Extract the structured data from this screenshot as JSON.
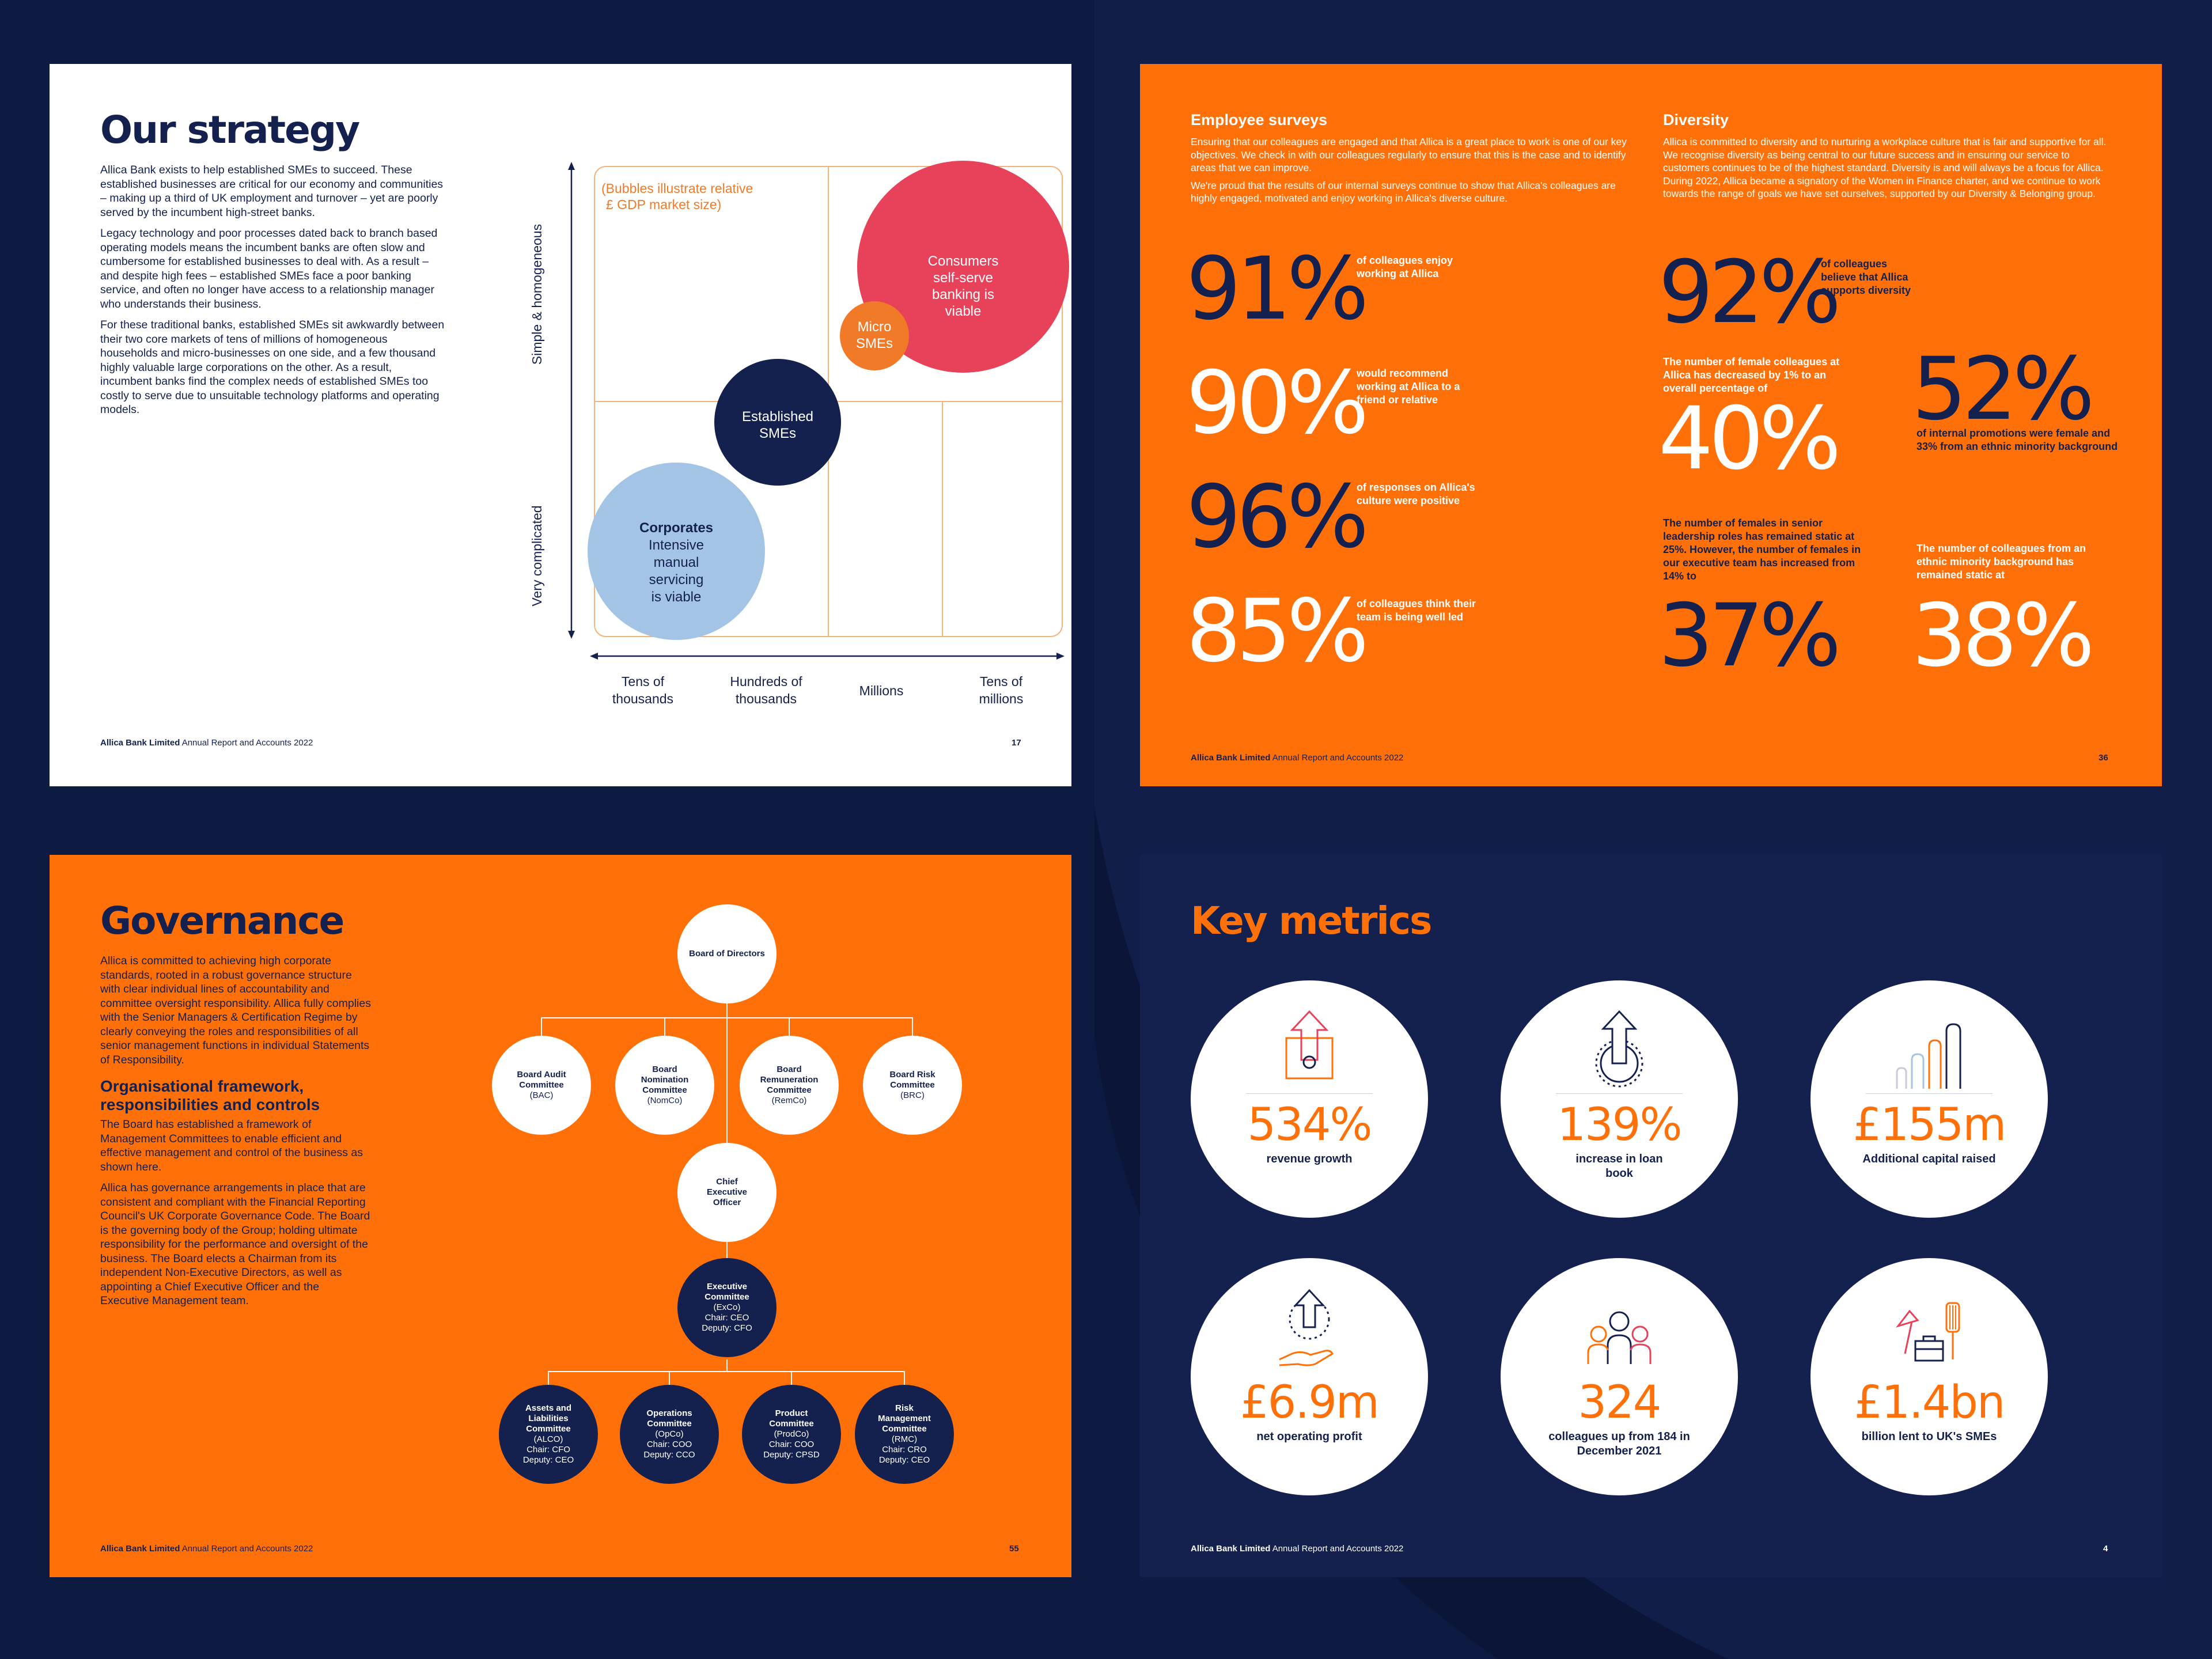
{
  "strategy": {
    "title": "Our strategy",
    "paragraphs": [
      "Allica Bank exists to help established SMEs to succeed. These established businesses are critical for our economy and communities – making up a third of UK employment and turnover – yet are poorly served by the incumbent high-street banks.",
      "Legacy technology and poor processes dated back to branch based operating models means the incumbent banks are often slow and cumbersome for established businesses to deal with. As a result – and despite high fees – established SMEs face a poor banking service, and often no longer have access to a relationship manager who understands their business.",
      "For these traditional banks, established SMEs sit awkwardly between their two core markets of tens of millions of homogeneous households and micro-businesses on one side, and a few thousand highly valuable large corporations on the other. As a result, incumbent banks find the complex needs of established SMEs too costly to serve due to unsuitable technology platforms and operating models."
    ],
    "note_line1": "(Bubbles illustrate relative",
    "note_line2": "£ GDP market size)",
    "y_axis_top": "Simple & homogeneous",
    "y_axis_bottom": "Very complicated",
    "x_ticks": [
      [
        "Tens of",
        "thousands"
      ],
      [
        "Hundreds of",
        "thousands"
      ],
      [
        "Millions"
      ],
      [
        "Tens of",
        "millions"
      ]
    ],
    "bubbles": [
      {
        "lines": [
          "Consumers",
          "self-serve",
          "banking is",
          "viable"
        ],
        "color": "#e8425a"
      },
      {
        "lines": [
          "Micro",
          "SMEs"
        ],
        "color": "#f07a28"
      },
      {
        "lines": [
          "Established",
          "SMEs"
        ],
        "color": "#14214f"
      },
      {
        "lines": [
          "Corporates",
          "Intensive",
          "manual",
          "servicing",
          "is viable"
        ],
        "color": "#a4c4e6"
      }
    ],
    "footer_brand": "Allica Bank Limited",
    "footer_text": " Annual Report and Accounts 2022",
    "page_number": "17"
  },
  "people": {
    "surveys_heading": "Employee surveys",
    "surveys_p1": "Ensuring that our colleagues are engaged and that Allica is a great place to work is one of our key objectives. We check in with our colleagues regularly to ensure that this is the case and to identify areas that we can improve.",
    "surveys_p2": "We're proud that the results of our internal surveys continue to show that Allica's colleagues are highly engaged, motivated and enjoy working in Allica's diverse culture.",
    "diversity_heading": "Diversity",
    "diversity_p": "Allica is committed to diversity and to nurturing a workplace culture that is fair and supportive for all. We recognise diversity as being central to our future success and in ensuring our service to customers continues to be of the highest standard. Diversity is and will always be a focus for Allica. During 2022, Allica became a signatory of the Women in Finance charter, and we continue to work towards the range of goals we have set ourselves, supported by our Diversity & Belonging group.",
    "survey_stats": [
      {
        "value": "91%",
        "caption": "of colleagues enjoy working at Allica",
        "color": "navy"
      },
      {
        "value": "90%",
        "caption": "would recommend working at Allica to a friend or relative",
        "color": "white"
      },
      {
        "value": "96%",
        "caption": "of responses on Allica's culture were positive",
        "color": "navy"
      },
      {
        "value": "85%",
        "caption": "of colleagues think their team is being well led",
        "color": "white"
      }
    ],
    "diversity_stats": {
      "s92_value": "92%",
      "s92_caption": "of colleagues believe that Allica supports diversity",
      "s40_intro": "The number of female colleagues at Allica has decreased by 1% to an overall percentage of",
      "s40_value": "40%",
      "s52_value": "52%",
      "s52_caption": "of internal promotions were female and 33% from an ethnic minority background",
      "s37_intro": "The number of females in senior leadership roles has remained static at 25%. However, the number of females in our executive team has increased from 14% to",
      "s37_value": "37%",
      "s38_intro": "The number of colleagues from an ethnic minority background has remained static at",
      "s38_value": "38%"
    },
    "footer_brand": "Allica Bank Limited",
    "footer_text": " Annual Report and Accounts 2022",
    "page_number": "36"
  },
  "governance": {
    "title": "Governance",
    "intro": "Allica is committed to achieving high corporate standards, rooted in a robust governance structure with clear individual lines of accountability and committee oversight responsibility. Allica fully complies with the Senior Managers & Certification Regime by clearly conveying the roles and responsibilities of all senior management functions in individual Statements of Responsibility.",
    "subheading": "Organisational framework, responsibilities and controls",
    "p2": "The Board has established a framework of Management Committees to enable efficient and effective management and control of the business as shown here.",
    "p3": "Allica has governance arrangements in place that are consistent and compliant with the Financial Reporting Council's UK Corporate Governance Code. The Board is the governing body of the Group; holding ultimate responsibility for the performance and oversight of the business. The Board elects a Chairman from its independent Non-Executive Directors, as well as appointing a Chief Executive Officer and the Executive Management team.",
    "board": "Board of Directors",
    "committees": [
      {
        "title": "Board Audit Committee",
        "abbr": "(BAC)"
      },
      {
        "title": "Board Nomination Committee",
        "abbr": "(NomCo)"
      },
      {
        "title": "Board Remuneration Committee",
        "abbr": "(RemCo)"
      },
      {
        "title": "Board Risk Committee",
        "abbr": "(BRC)"
      }
    ],
    "ceo": "Chief Executive Officer",
    "exco": {
      "title": "Executive Committee",
      "abbr": "(ExCo)",
      "chair": "Chair: CEO",
      "deputy": "Deputy: CFO"
    },
    "mgmt": [
      {
        "title": "Assets and Liabilities Committee",
        "abbr": "(ALCO)",
        "chair": "Chair: CFO",
        "deputy": "Deputy: CEO"
      },
      {
        "title": "Operations Committee",
        "abbr": "(OpCo)",
        "chair": "Chair: COO",
        "deputy": "Deputy: CCO"
      },
      {
        "title": "Product Committee",
        "abbr": "(ProdCo)",
        "chair": "Chair: COO",
        "deputy": "Deputy: CPSD"
      },
      {
        "title": "Risk Management Committee",
        "abbr": "(RMC)",
        "chair": "Chair: CRO",
        "deputy": "Deputy: CEO"
      }
    ],
    "footer_brand": "Allica Bank Limited",
    "footer_text": " Annual Report and Accounts 2022",
    "page_number": "55"
  },
  "metrics": {
    "title": "Key metrics",
    "items": [
      {
        "value": "534%",
        "label": "revenue growth",
        "icon": "revenue-arrow-icon"
      },
      {
        "value": "139%",
        "label": "increase in loan book",
        "icon": "loan-arrow-icon"
      },
      {
        "value": "£155m",
        "label": "Additional capital raised",
        "icon": "capital-bars-icon"
      },
      {
        "value": "£6.9m",
        "label": "net operating profit",
        "icon": "profit-hand-icon"
      },
      {
        "value": "324",
        "label": "colleagues up from 184 in December 2021",
        "icon": "colleagues-icon"
      },
      {
        "value": "£1.4bn",
        "label": "billion lent to UK's SMEs",
        "icon": "sme-tools-icon"
      }
    ],
    "footer_brand": "Allica Bank Limited",
    "footer_text": " Annual Report and Accounts 2022",
    "page_number": "4"
  },
  "colors": {
    "navy": "#14214f",
    "orange": "#ff7008",
    "background": "#0d1a42"
  }
}
